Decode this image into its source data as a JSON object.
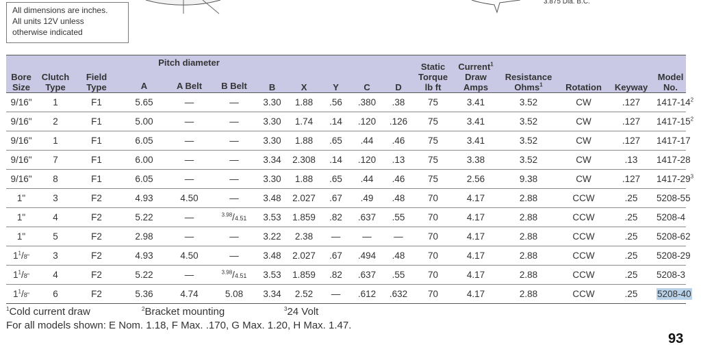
{
  "notes": [
    "All dimensions are inches.",
    "All units 12V unless",
    "otherwise indicated"
  ],
  "drawing_label": "3.875 Dia. B.C.",
  "table": {
    "group_header": "Pitch diameter",
    "headers": {
      "bore": [
        "Bore",
        "Size"
      ],
      "clutch": [
        "Clutch",
        "Type"
      ],
      "field": [
        "Field",
        "Type"
      ],
      "a": "A",
      "a_belt": "A Belt",
      "b_belt": "B Belt",
      "b": "B",
      "x": "X",
      "y": "Y",
      "c": "C",
      "d": "D",
      "torque": [
        "Static",
        "Torque",
        "lb ft"
      ],
      "current": [
        "Current",
        "Draw",
        "Amps"
      ],
      "current_sup": "1",
      "resistance": [
        "Resistance",
        "Ohms"
      ],
      "resistance_sup": "1",
      "rotation": "Rotation",
      "keyway": "Keyway",
      "model": [
        "Model",
        "No."
      ]
    },
    "rows": [
      {
        "bore_whole": "9/16\"",
        "bore_frac_num": "",
        "bore_frac_den": "",
        "clutch": "1",
        "field": "F1",
        "a": "5.65",
        "a_belt": "—",
        "b_belt": "—",
        "b_belt_num": "",
        "b_belt_den": "",
        "b": "3.30",
        "x": "1.88",
        "y": ".56",
        "c": ".380",
        "d": ".38",
        "torque": "75",
        "current": "3.41",
        "resistance": "3.52",
        "rotation": "CW",
        "keyway": ".127",
        "model": "1417-14",
        "model_sup": "2"
      },
      {
        "bore_whole": "9/16\"",
        "bore_frac_num": "",
        "bore_frac_den": "",
        "clutch": "2",
        "field": "F1",
        "a": "5.00",
        "a_belt": "—",
        "b_belt": "—",
        "b_belt_num": "",
        "b_belt_den": "",
        "b": "3.30",
        "x": "1.74",
        "y": ".14",
        "c": ".120",
        "d": ".126",
        "torque": "75",
        "current": "3.41",
        "resistance": "3.52",
        "rotation": "CW",
        "keyway": ".127",
        "model": "1417-15",
        "model_sup": "2"
      },
      {
        "bore_whole": "9/16\"",
        "bore_frac_num": "",
        "bore_frac_den": "",
        "clutch": "1",
        "field": "F1",
        "a": "6.05",
        "a_belt": "—",
        "b_belt": "—",
        "b_belt_num": "",
        "b_belt_den": "",
        "b": "3.30",
        "x": "1.88",
        "y": ".65",
        "c": ".44",
        "d": ".46",
        "torque": "75",
        "current": "3.41",
        "resistance": "3.52",
        "rotation": "CW",
        "keyway": ".127",
        "model": "1417-17",
        "model_sup": ""
      },
      {
        "bore_whole": "9/16\"",
        "bore_frac_num": "",
        "bore_frac_den": "",
        "clutch": "7",
        "field": "F1",
        "a": "6.00",
        "a_belt": "—",
        "b_belt": "—",
        "b_belt_num": "",
        "b_belt_den": "",
        "b": "3.34",
        "x": "2.308",
        "y": ".14",
        "c": ".120",
        "d": ".13",
        "torque": "75",
        "current": "3.38",
        "resistance": "3.52",
        "rotation": "CW",
        "keyway": ".13",
        "model": "1417-28",
        "model_sup": ""
      },
      {
        "bore_whole": "9/16\"",
        "bore_frac_num": "",
        "bore_frac_den": "",
        "clutch": "8",
        "field": "F1",
        "a": "6.05",
        "a_belt": "—",
        "b_belt": "—",
        "b_belt_num": "",
        "b_belt_den": "",
        "b": "3.30",
        "x": "1.88",
        "y": ".65",
        "c": ".44",
        "d": ".46",
        "torque": "75",
        "current": "2.56",
        "resistance": "9.38",
        "rotation": "CW",
        "keyway": ".127",
        "model": "1417-29",
        "model_sup": "3"
      },
      {
        "bore_whole": "1\"",
        "bore_frac_num": "",
        "bore_frac_den": "",
        "clutch": "3",
        "field": "F2",
        "a": "4.93",
        "a_belt": "4.50",
        "b_belt": "—",
        "b_belt_num": "",
        "b_belt_den": "",
        "b": "3.48",
        "x": "2.027",
        "y": ".67",
        "c": ".49",
        "d": ".48",
        "torque": "70",
        "current": "4.17",
        "resistance": "2.88",
        "rotation": "CCW",
        "keyway": ".25",
        "model": "5208-55",
        "model_sup": ""
      },
      {
        "bore_whole": "1\"",
        "bore_frac_num": "",
        "bore_frac_den": "",
        "clutch": "4",
        "field": "F2",
        "a": "5.22",
        "a_belt": "—",
        "b_belt": "",
        "b_belt_num": "3.98",
        "b_belt_den": "4.51",
        "b": "3.53",
        "x": "1.859",
        "y": ".82",
        "c": ".637",
        "d": ".55",
        "torque": "70",
        "current": "4.17",
        "resistance": "2.88",
        "rotation": "CCW",
        "keyway": ".25",
        "model": "5208-4",
        "model_sup": ""
      },
      {
        "bore_whole": "1\"",
        "bore_frac_num": "",
        "bore_frac_den": "",
        "clutch": "5",
        "field": "F2",
        "a": "2.98",
        "a_belt": "—",
        "b_belt": "—",
        "b_belt_num": "",
        "b_belt_den": "",
        "b": "3.22",
        "x": "2.38",
        "y": "—",
        "c": "—",
        "d": "—",
        "torque": "70",
        "current": "4.17",
        "resistance": "2.88",
        "rotation": "CCW",
        "keyway": ".25",
        "model": "5208-62",
        "model_sup": ""
      },
      {
        "bore_whole": "1",
        "bore_frac_num": "1",
        "bore_frac_den": "8\"",
        "clutch": "3",
        "field": "F2",
        "a": "4.93",
        "a_belt": "4.50",
        "b_belt": "—",
        "b_belt_num": "",
        "b_belt_den": "",
        "b": "3.48",
        "x": "2.027",
        "y": ".67",
        "c": ".494",
        "d": ".48",
        "torque": "70",
        "current": "4.17",
        "resistance": "2.88",
        "rotation": "CCW",
        "keyway": ".25",
        "model": "5208-29",
        "model_sup": ""
      },
      {
        "bore_whole": "1",
        "bore_frac_num": "1",
        "bore_frac_den": "8\"",
        "clutch": "4",
        "field": "F2",
        "a": "5.22",
        "a_belt": "—",
        "b_belt": "",
        "b_belt_num": "3.98",
        "b_belt_den": "4.51",
        "b": "3.53",
        "x": "1.859",
        "y": ".82",
        "c": ".637",
        "d": ".55",
        "torque": "70",
        "current": "4.17",
        "resistance": "2.88",
        "rotation": "CCW",
        "keyway": ".25",
        "model": "5208-3",
        "model_sup": ""
      },
      {
        "bore_whole": "1",
        "bore_frac_num": "1",
        "bore_frac_den": "8\"",
        "clutch": "6",
        "field": "F2",
        "a": "5.36",
        "a_belt": "4.74",
        "b_belt": "5.08",
        "b_belt_num": "",
        "b_belt_den": "",
        "b": "3.34",
        "x": "2.52",
        "y": "—",
        "c": ".612",
        "d": ".632",
        "torque": "70",
        "current": "4.17",
        "resistance": "2.88",
        "rotation": "CCW",
        "keyway": ".25",
        "model": "5208-40",
        "model_sup": "",
        "highlighted": true
      }
    ]
  },
  "footnotes": {
    "n1_sup": "1",
    "n1": "Cold current draw",
    "n2_sup": "2",
    "n2": "Bracket mounting",
    "n3_sup": "3",
    "n3": "24 Volt",
    "all_models": "For all models shown: E Nom. 1.18, F Max. .170, G Max. 1.20, H Max. 1.47."
  },
  "page_number": "93",
  "colors": {
    "header_bg": "#c9c9e6",
    "highlight": "#b9d2e8"
  }
}
